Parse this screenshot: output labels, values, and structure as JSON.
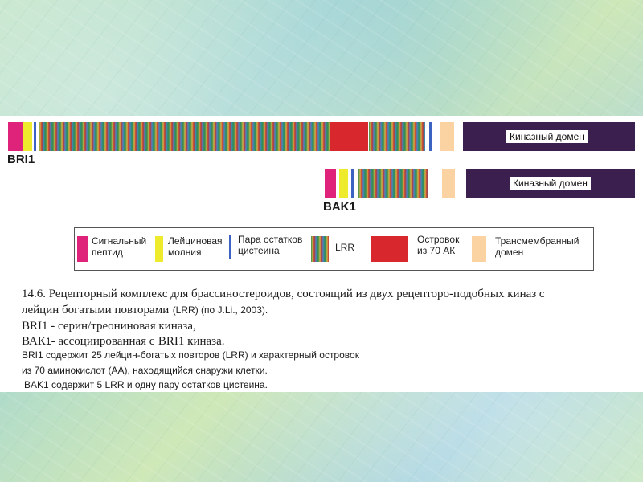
{
  "diagram": {
    "proteins": [
      {
        "name": "BRI1",
        "kinase_label": "Киназный домен"
      },
      {
        "name": "BAK1",
        "kinase_label": "Киназный домен"
      }
    ],
    "legend": {
      "signal": "Сигнальный пептид",
      "signal_l1": "Сигнальный",
      "signal_l2": "пептид",
      "zipper_l1": "Лейциновая",
      "zipper_l2": "молния",
      "cys_l1": "Пара остатков",
      "cys_l2": "цистеина",
      "lrr": "LRR",
      "island_l1": "Островок",
      "island_l2": "из 70 АК",
      "tm_l1": "Трансмембранный",
      "tm_l2": "домен"
    },
    "colors": {
      "signal": "#e0237a",
      "zipper": "#eeea2c",
      "cys": "#3d63c2",
      "island": "#d8272d",
      "tm": "#fbd3a2",
      "kinase": "#3a1f4f"
    }
  },
  "caption": {
    "line1": "14.6. Рецепторный комплекс для брассиностероидов, состоящий из двух рецепторо-подобных киназ с",
    "line2_a": "лейцин богатыми повторами",
    "line2_b": "(LRR) (по J.Li., 2003).",
    "line3": "BRI1 - серин/треониновая киназа,",
    "line4_a": "ВАК",
    "line4_b": "1",
    "line4_c": "- ассоциированная с",
    "line4_d": "BRI1 киназа.",
    "line5": "BRI1 содержит 25 лейцин-богатых повторов (LRR) и характерный островок",
    "line6": "из 70 аминокислот (АА), находящийся снаружи клетки.",
    "line7": "BAK1 содержит 5 LRR и одну пару остатков цистеина."
  }
}
